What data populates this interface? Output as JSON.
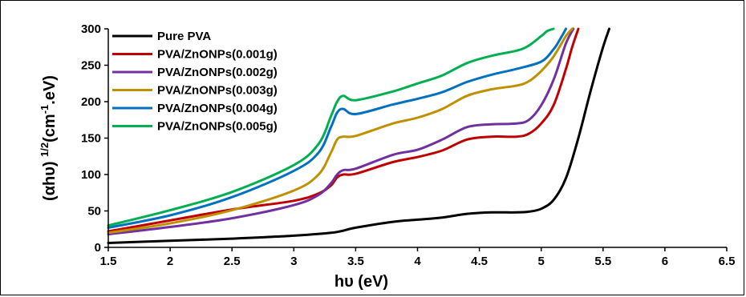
{
  "chart_data": {
    "type": "line",
    "title": "",
    "xlabel": "hυ (eV)",
    "ylabel": "(αhυ) 1/2(cm-1.eV)",
    "ylabel_parts": {
      "base": "(αhυ) ",
      "sup1": "1/2",
      "mid": "(cm",
      "sup2": "-1",
      "end": ".eV)"
    },
    "xlim": [
      1.5,
      6.5
    ],
    "ylim": [
      0,
      300
    ],
    "xticks": [
      1.5,
      2,
      2.5,
      3,
      3.5,
      4,
      4.5,
      5,
      5.5,
      6,
      6.5
    ],
    "yticks": [
      0,
      50,
      100,
      150,
      200,
      250,
      300
    ],
    "grid": false,
    "legend_position": "top-left",
    "series": [
      {
        "name": "Pure PVA",
        "color": "#000000",
        "x": [
          1.5,
          2.0,
          2.5,
          3.0,
          3.3,
          3.4,
          3.5,
          3.8,
          4.0,
          4.2,
          4.4,
          4.6,
          4.8,
          4.9,
          5.0,
          5.1,
          5.2,
          5.3,
          5.4,
          5.5,
          5.55
        ],
        "y": [
          6,
          9,
          12,
          16,
          20,
          23,
          27,
          35,
          38,
          41,
          46,
          48,
          48,
          49,
          53,
          65,
          95,
          150,
          215,
          275,
          300
        ]
      },
      {
        "name": "PVA/ZnONPs(0.001g)",
        "color": "#c00000",
        "x": [
          1.5,
          2.0,
          2.5,
          3.0,
          3.2,
          3.3,
          3.35,
          3.4,
          3.5,
          3.8,
          4.0,
          4.2,
          4.4,
          4.6,
          4.8,
          4.9,
          5.0,
          5.1,
          5.2,
          5.25,
          5.3
        ],
        "y": [
          22,
          37,
          52,
          64,
          74,
          85,
          96,
          100,
          101,
          117,
          124,
          133,
          148,
          152,
          152,
          156,
          170,
          195,
          245,
          275,
          300
        ]
      },
      {
        "name": "PVA/ZnONPs(0.002g)",
        "color": "#7030a0",
        "x": [
          1.5,
          2.0,
          2.5,
          3.0,
          3.2,
          3.3,
          3.35,
          3.4,
          3.5,
          3.8,
          4.0,
          4.2,
          4.4,
          4.6,
          4.8,
          4.9,
          5.0,
          5.1,
          5.2,
          5.26
        ],
        "y": [
          18,
          28,
          40,
          58,
          72,
          88,
          100,
          106,
          108,
          127,
          134,
          148,
          165,
          169,
          170,
          175,
          195,
          230,
          280,
          300
        ]
      },
      {
        "name": "PVA/ZnONPs(0.003g)",
        "color": "#bf9000",
        "x": [
          1.5,
          2.0,
          2.5,
          3.0,
          3.2,
          3.3,
          3.35,
          3.4,
          3.5,
          3.8,
          4.0,
          4.2,
          4.4,
          4.6,
          4.8,
          4.9,
          5.0,
          5.1,
          5.2,
          5.25
        ],
        "y": [
          20,
          33,
          51,
          78,
          100,
          130,
          148,
          152,
          153,
          170,
          178,
          190,
          208,
          217,
          222,
          228,
          242,
          262,
          290,
          300
        ]
      },
      {
        "name": "PVA/ZnONPs(0.004g)",
        "color": "#0070c0",
        "x": [
          1.5,
          2.0,
          2.5,
          3.0,
          3.2,
          3.3,
          3.35,
          3.4,
          3.5,
          3.8,
          4.0,
          4.2,
          4.4,
          4.6,
          4.8,
          5.0,
          5.1,
          5.15,
          5.2
        ],
        "y": [
          27,
          44,
          69,
          105,
          130,
          165,
          185,
          190,
          183,
          196,
          204,
          213,
          227,
          237,
          245,
          255,
          272,
          285,
          300
        ]
      },
      {
        "name": "PVA/ZnONPs(0.005g)",
        "color": "#00b050",
        "x": [
          1.5,
          2.0,
          2.5,
          3.0,
          3.2,
          3.3,
          3.35,
          3.4,
          3.5,
          3.8,
          4.0,
          4.2,
          4.4,
          4.6,
          4.8,
          4.9,
          5.0,
          5.05,
          5.1
        ],
        "y": [
          30,
          51,
          76,
          113,
          142,
          180,
          200,
          208,
          202,
          214,
          225,
          236,
          253,
          263,
          270,
          277,
          290,
          297,
          300
        ]
      }
    ]
  }
}
